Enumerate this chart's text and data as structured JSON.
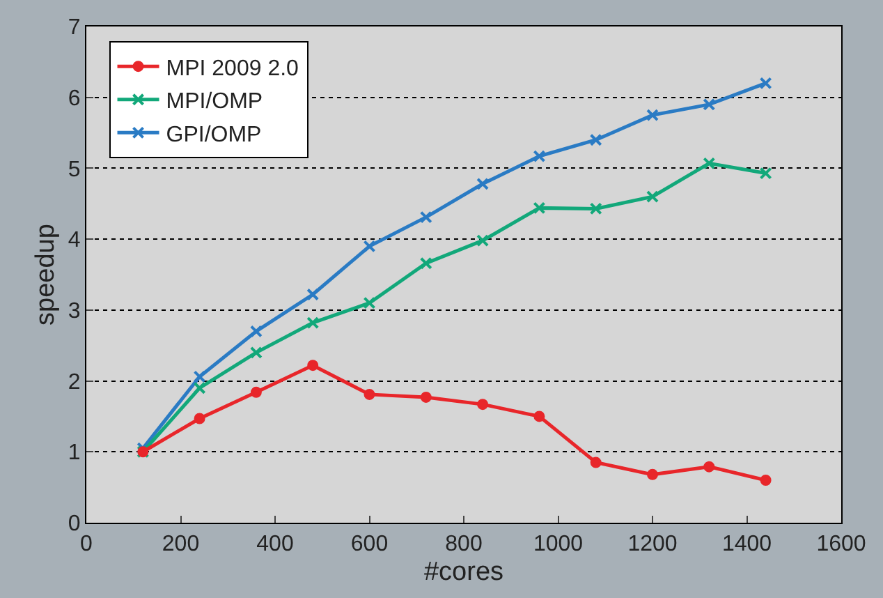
{
  "chart_data": {
    "type": "line",
    "xlabel": "#cores",
    "ylabel": "speedup",
    "x": [
      120,
      240,
      360,
      480,
      600,
      720,
      840,
      960,
      1080,
      1200,
      1320,
      1440
    ],
    "series": [
      {
        "name": "MPI 2009 2.0",
        "color": "#e8262a",
        "marker": "circle",
        "values": [
          1.0,
          1.47,
          1.84,
          2.22,
          1.81,
          1.77,
          1.67,
          1.5,
          0.85,
          0.68,
          0.79,
          0.6
        ]
      },
      {
        "name": "MPI/OMP",
        "color": "#12a87a",
        "marker": "cross",
        "values": [
          1.0,
          1.9,
          2.4,
          2.82,
          3.1,
          3.66,
          3.98,
          4.44,
          4.43,
          4.6,
          5.07,
          4.93
        ]
      },
      {
        "name": "GPI/OMP",
        "color": "#2a7bc4",
        "marker": "cross",
        "values": [
          1.05,
          2.06,
          2.7,
          3.22,
          3.9,
          4.31,
          4.78,
          5.17,
          5.4,
          5.75,
          5.9,
          6.2
        ]
      }
    ],
    "xlim": [
      0,
      1600
    ],
    "xticks": [
      0,
      200,
      400,
      600,
      800,
      1000,
      1200,
      1400,
      1600
    ],
    "ylim": [
      0,
      7
    ],
    "yticks": [
      0,
      1,
      2,
      3,
      4,
      5,
      6,
      7
    ],
    "grid": "y",
    "line_style": "solid",
    "legend": "top left"
  }
}
